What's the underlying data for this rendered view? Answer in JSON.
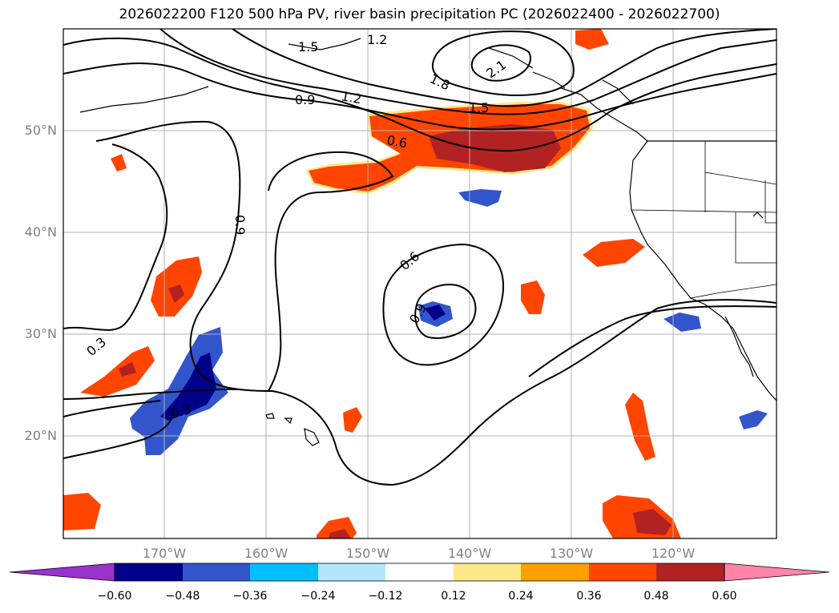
{
  "title": "2026022200 F120 500 hPa PV, river basin precipitation PC (2026022400 - 2026022700)",
  "lat_labels": [
    "50°N",
    "40°N",
    "30°N",
    "20°N"
  ],
  "lon_labels": [
    "170°W",
    "160°W",
    "150°W",
    "140°W",
    "130°W",
    "120°W"
  ],
  "contour_labels": [
    "1.5",
    "1.2",
    "2.1",
    "1.8",
    "0.9",
    "1.2",
    "1.5",
    "0.6",
    "0.9",
    "0.6",
    "0.9",
    "0.3",
    "0.3"
  ],
  "colorbar": {
    "ticks": [
      "−0.60",
      "−0.48",
      "−0.36",
      "−0.24",
      "−0.12",
      "0.12",
      "0.24",
      "0.36",
      "0.48",
      "0.60"
    ],
    "colors": [
      "#9933cc",
      "#00008b",
      "#3355cc",
      "#00bfff",
      "#b3e5fc",
      "#ffffff",
      "#ffe88a",
      "#ff9f00",
      "#ff4500",
      "#b22222",
      "#ff85a8"
    ]
  }
}
